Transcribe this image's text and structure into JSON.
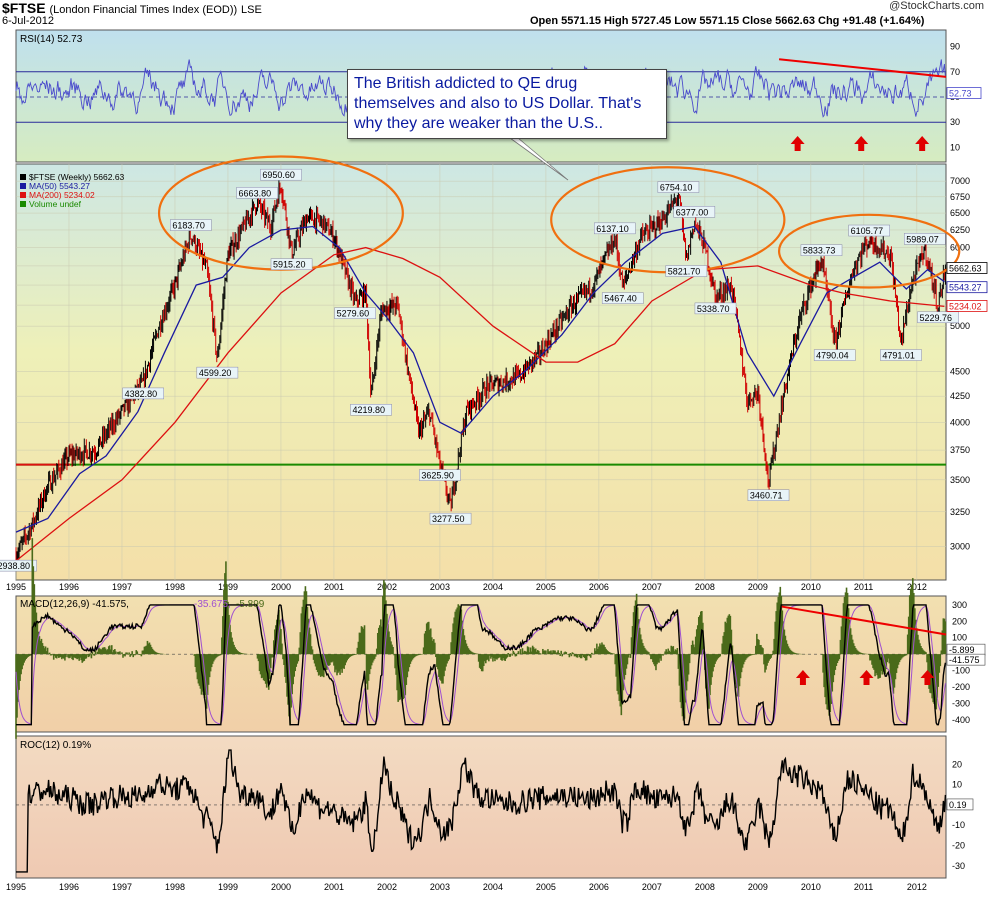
{
  "header": {
    "symbol": "$FTSE",
    "name": "(London Financial Times Index (EOD))",
    "exchange": "LSE",
    "date": "6-Jul-2012",
    "ohlc_text": "Open 5571.15  High 5727.45  Low 5571.15  Close 5662.63  Chg +91.48 (+1.64%)",
    "brand": "@StockCharts.com"
  },
  "annotation": {
    "callout": "The British addicted to QE drug themselves and also to US Dollar. That's why they are weaker than the U.S.."
  },
  "colors": {
    "price_up": "#000000",
    "price_down": "#d00000",
    "ma50": "#1a1aa0",
    "ma200": "#dd1111",
    "support": "#1a8a00",
    "ellipse": "#f07010",
    "trend": "#ee0000",
    "rsi": "#4a4acc",
    "macd_hist": "#4a6a1a"
  },
  "chart_data": [
    {
      "type": "line",
      "panel": "RSI",
      "label": "RSI(14) 52.73",
      "current": 52.73,
      "ylim": [
        0,
        100
      ],
      "yticks": [
        10,
        30,
        50,
        70,
        90
      ],
      "bands": [
        30,
        70
      ],
      "arrows_at": [
        2009.75,
        2010.95,
        2012.1
      ]
    },
    {
      "type": "line",
      "panel": "Price",
      "series": [
        {
          "name": "$FTSE (Weekly) 5662.63",
          "last": 5662.63
        },
        {
          "name": "MA(50) 5543.27",
          "last": 5543.27
        },
        {
          "name": "MA(200) 5234.02",
          "last": 5234.02
        },
        {
          "name": "Volume undef"
        }
      ],
      "x_range": [
        1995.0,
        2012.55
      ],
      "ylim": [
        2800,
        7150
      ],
      "log_scale": true,
      "yticks": [
        3000,
        3250,
        3500,
        3750,
        4000,
        4250,
        4500,
        5000,
        5250,
        5500,
        5750,
        6000,
        6250,
        6500,
        6750,
        7000
      ],
      "xticks": [
        "1995",
        "1996",
        "1997",
        "1998",
        "1999",
        "2000",
        "2001",
        "2002",
        "2003",
        "2004",
        "2005",
        "2006",
        "2007",
        "2008",
        "2009",
        "2010",
        "2011",
        "2012"
      ],
      "price_points": [
        [
          1995.0,
          2938.8
        ],
        [
          1995.3,
          3150
        ],
        [
          1995.6,
          3450
        ],
        [
          1996.0,
          3700
        ],
        [
          1996.5,
          3750
        ],
        [
          1997.0,
          4100
        ],
        [
          1997.4,
          4382.8
        ],
        [
          1997.7,
          5000
        ],
        [
          1998.0,
          5500
        ],
        [
          1998.3,
          6183.7
        ],
        [
          1998.6,
          5700
        ],
        [
          1998.8,
          4599.2
        ],
        [
          1999.0,
          5900
        ],
        [
          1999.3,
          6300
        ],
        [
          1999.55,
          6663.8
        ],
        [
          1999.8,
          6300
        ],
        [
          2000.0,
          6950.6
        ],
        [
          2000.2,
          5915.2
        ],
        [
          2000.5,
          6450
        ],
        [
          2000.8,
          6350
        ],
        [
          2001.0,
          6150
        ],
        [
          2001.2,
          5700
        ],
        [
          2001.4,
          5279.6
        ],
        [
          2001.6,
          5400
        ],
        [
          2001.7,
          4219.8
        ],
        [
          2001.9,
          5200
        ],
        [
          2002.2,
          5250
        ],
        [
          2002.4,
          4500
        ],
        [
          2002.6,
          3900
        ],
        [
          2002.8,
          4100
        ],
        [
          2003.0,
          3625.9
        ],
        [
          2003.2,
          3277.5
        ],
        [
          2003.5,
          4100
        ],
        [
          2003.9,
          4350
        ],
        [
          2004.5,
          4450
        ],
        [
          2004.9,
          4700
        ],
        [
          2005.5,
          5250
        ],
        [
          2005.9,
          5500
        ],
        [
          2006.3,
          6137.1
        ],
        [
          2006.45,
          5467.4
        ],
        [
          2006.8,
          6150
        ],
        [
          2007.2,
          6400
        ],
        [
          2007.5,
          6754.1
        ],
        [
          2007.65,
          5821.7
        ],
        [
          2007.8,
          6377
        ],
        [
          2008.0,
          6000
        ],
        [
          2008.2,
          5338.7
        ],
        [
          2008.5,
          5500
        ],
        [
          2008.8,
          4200
        ],
        [
          2009.0,
          4300
        ],
        [
          2009.2,
          3460.71
        ],
        [
          2009.5,
          4300
        ],
        [
          2009.8,
          5100
        ],
        [
          2010.0,
          5500
        ],
        [
          2010.2,
          5833.73
        ],
        [
          2010.45,
          4790.04
        ],
        [
          2010.8,
          5700
        ],
        [
          2011.0,
          6000
        ],
        [
          2011.1,
          6105.77
        ],
        [
          2011.5,
          5900
        ],
        [
          2011.7,
          4791.01
        ],
        [
          2011.9,
          5500
        ],
        [
          2012.15,
          5989.07
        ],
        [
          2012.4,
          5229.76
        ],
        [
          2012.52,
          5662.63
        ]
      ],
      "labels": [
        {
          "x": 1995.0,
          "y": 2938.8,
          "text": "2938.80"
        },
        {
          "x": 1997.4,
          "y": 4382.8,
          "text": "4382.80"
        },
        {
          "x": 1998.3,
          "y": 6183.7,
          "text": "6183.70"
        },
        {
          "x": 1998.8,
          "y": 4599.2,
          "text": "4599.20"
        },
        {
          "x": 1999.55,
          "y": 6663.8,
          "text": "6663.80"
        },
        {
          "x": 2000.0,
          "y": 6950.6,
          "text": "6950.60"
        },
        {
          "x": 2000.2,
          "y": 5915.2,
          "text": "5915.20"
        },
        {
          "x": 2001.4,
          "y": 5279.6,
          "text": "5279.60"
        },
        {
          "x": 2001.7,
          "y": 4219.8,
          "text": "4219.80"
        },
        {
          "x": 2003.0,
          "y": 3625.9,
          "text": "3625.90"
        },
        {
          "x": 2003.2,
          "y": 3277.5,
          "text": "3277.50"
        },
        {
          "x": 2006.3,
          "y": 6137.1,
          "text": "6137.10"
        },
        {
          "x": 2006.45,
          "y": 5467.4,
          "text": "5467.40"
        },
        {
          "x": 2007.5,
          "y": 6754.1,
          "text": "6754.10"
        },
        {
          "x": 2007.65,
          "y": 5821.7,
          "text": "5821.70"
        },
        {
          "x": 2007.8,
          "y": 6377.0,
          "text": "6377.00"
        },
        {
          "x": 2008.2,
          "y": 5338.7,
          "text": "5338.70"
        },
        {
          "x": 2009.2,
          "y": 3460.71,
          "text": "3460.71"
        },
        {
          "x": 2010.2,
          "y": 5833.73,
          "text": "5833.73"
        },
        {
          "x": 2010.45,
          "y": 4790.04,
          "text": "4790.04"
        },
        {
          "x": 2011.1,
          "y": 6105.77,
          "text": "6105.77"
        },
        {
          "x": 2011.7,
          "y": 4791.01,
          "text": "4791.01"
        },
        {
          "x": 2012.15,
          "y": 5989.07,
          "text": "5989.07"
        },
        {
          "x": 2012.4,
          "y": 5229.76,
          "text": "5229.76"
        }
      ],
      "ma50_points": [
        [
          1995.0,
          3100
        ],
        [
          1995.6,
          3200
        ],
        [
          1996.2,
          3550
        ],
        [
          1996.7,
          3700
        ],
        [
          1997.3,
          4100
        ],
        [
          1997.8,
          4700
        ],
        [
          1998.4,
          5500
        ],
        [
          1998.9,
          5600
        ],
        [
          1999.4,
          6000
        ],
        [
          2000.0,
          6250
        ],
        [
          2000.6,
          6300
        ],
        [
          2001.1,
          6000
        ],
        [
          2001.6,
          5400
        ],
        [
          2002.0,
          5100
        ],
        [
          2002.5,
          4700
        ],
        [
          2003.0,
          4000
        ],
        [
          2003.4,
          3900
        ],
        [
          2004.0,
          4250
        ],
        [
          2004.6,
          4500
        ],
        [
          2005.3,
          4900
        ],
        [
          2005.9,
          5400
        ],
        [
          2006.5,
          5800
        ],
        [
          2007.2,
          6200
        ],
        [
          2007.8,
          6300
        ],
        [
          2008.3,
          5800
        ],
        [
          2008.8,
          4700
        ],
        [
          2009.3,
          4250
        ],
        [
          2009.8,
          4800
        ],
        [
          2010.3,
          5400
        ],
        [
          2010.8,
          5600
        ],
        [
          2011.3,
          5800
        ],
        [
          2011.8,
          5450
        ],
        [
          2012.2,
          5700
        ],
        [
          2012.52,
          5543.27
        ]
      ],
      "ma200_points": [
        [
          1995.0,
          2900
        ],
        [
          1996.0,
          3200
        ],
        [
          1997.0,
          3500
        ],
        [
          1998.0,
          4000
        ],
        [
          1999.0,
          4700
        ],
        [
          2000.0,
          5400
        ],
        [
          2001.0,
          5900
        ],
        [
          2001.6,
          6000
        ],
        [
          2002.3,
          5850
        ],
        [
          2003.0,
          5600
        ],
        [
          2004.0,
          5000
        ],
        [
          2005.0,
          4600
        ],
        [
          2005.6,
          4600
        ],
        [
          2006.3,
          4800
        ],
        [
          2007.0,
          5300
        ],
        [
          2008.0,
          5700
        ],
        [
          2009.0,
          5750
        ],
        [
          2010.0,
          5500
        ],
        [
          2010.6,
          5400
        ],
        [
          2011.5,
          5300
        ],
        [
          2012.52,
          5234.02
        ]
      ],
      "support": 3625.9,
      "highlight_ellipses": [
        {
          "cx": 2000.0,
          "cy": 6500,
          "rx_years": 2.3,
          "ry_frac": 0.14
        },
        {
          "cx": 2007.3,
          "cy": 6400,
          "rx_years": 2.2,
          "ry_frac": 0.13
        },
        {
          "cx": 2011.1,
          "cy": 5950,
          "rx_years": 1.7,
          "ry_frac": 0.09
        }
      ]
    },
    {
      "type": "area",
      "panel": "MACD",
      "label": "MACD(12,26,9) -41.575, -35.675, -5.899",
      "label_parts": [
        "MACD(12,26,9) -41.575,",
        "-35.675,",
        "-5.899"
      ],
      "ylim": [
        -450,
        330
      ],
      "yticks": [
        -400,
        -300,
        -200,
        -100,
        100,
        200,
        300
      ],
      "last_labels": [
        "-5.899",
        "-41.575"
      ],
      "arrows_at": [
        2009.85,
        2011.05,
        2012.2
      ]
    },
    {
      "type": "line",
      "panel": "ROC",
      "label": "ROC(12) 0.19%",
      "current": 0.19,
      "ylim": [
        -35,
        30
      ],
      "yticks": [
        -30,
        -20,
        -10,
        10,
        20
      ],
      "last_label": "0.19"
    }
  ]
}
